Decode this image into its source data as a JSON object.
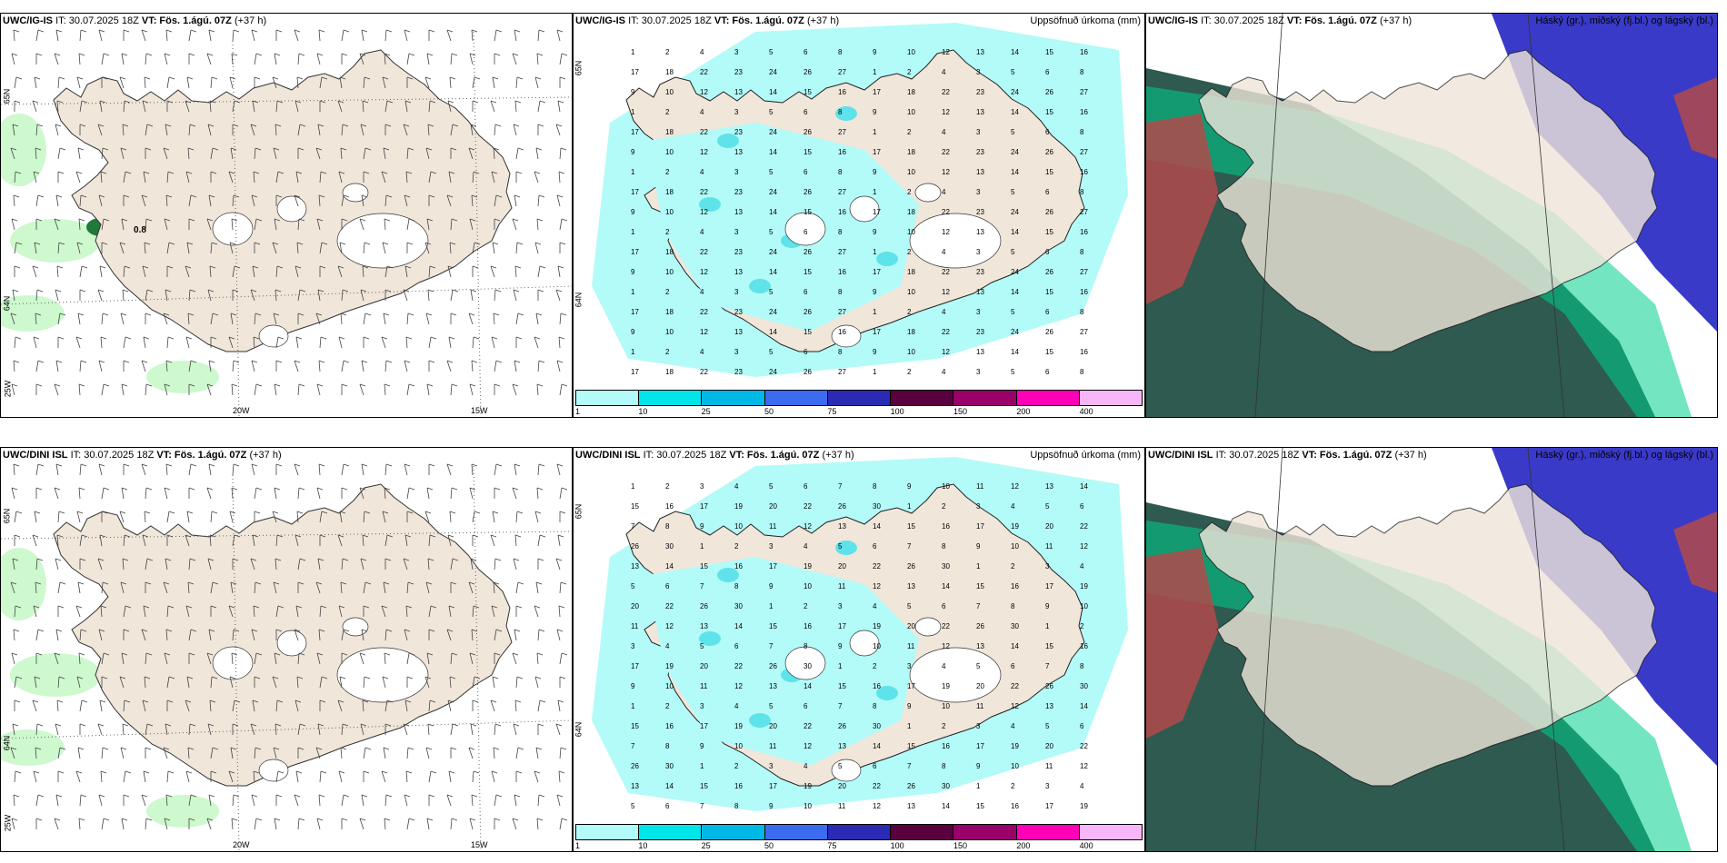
{
  "panels": [
    {
      "id": "wind-ig",
      "model": "UWC/IG-IS",
      "it": "IT: 30.07.2025 18Z",
      "vt": "VT: Fös. 1.ágú. 07Z",
      "lead": "(+37 h)",
      "right": "",
      "labels": [
        "20W",
        "15W",
        "65N",
        "64N",
        "25W"
      ],
      "numbers": [
        "0.8"
      ]
    },
    {
      "id": "precip-ig",
      "model": "UWC/IG-IS",
      "it": "IT: 30.07.2025 18Z",
      "vt": "VT: Fös. 1.ágú. 07Z",
      "lead": "(+37 h)",
      "right": "Uppsöfnuð úrkoma (mm)",
      "labels": [
        "65N",
        "64N"
      ],
      "numbers": [
        "1",
        "2",
        "4",
        "3",
        "5",
        "6",
        "8",
        "9",
        "10",
        "12",
        "13",
        "14",
        "15",
        "16",
        "17",
        "18",
        "22",
        "23",
        "24",
        "26",
        "27"
      ]
    },
    {
      "id": "cloud-ig",
      "model": "UWC/IG-IS",
      "it": "IT: 30.07.2025 18Z",
      "vt": "VT: Fös. 1.ágú. 07Z",
      "lead": "(+37 h)",
      "right": "Háský (gr.), miðský (fj.bl.) og lágský (bl.)"
    },
    {
      "id": "wind-dini",
      "model": "UWC/DINI ISL",
      "it": "IT: 30.07.2025 18Z",
      "vt": "VT: Fös. 1.ágú. 07Z",
      "lead": "(+37 h)",
      "right": "",
      "labels": [
        "20W",
        "15W",
        "65N",
        "64N",
        "25W"
      ]
    },
    {
      "id": "precip-dini",
      "model": "UWC/DINI ISL",
      "it": "IT: 30.07.2025 18Z",
      "vt": "VT: Fös. 1.ágú. 07Z",
      "lead": "(+37 h)",
      "right": "Uppsöfnuð úrkoma (mm)",
      "labels": [
        "65N",
        "64N"
      ],
      "numbers": [
        "1",
        "2",
        "3",
        "4",
        "5",
        "6",
        "7",
        "8",
        "9",
        "10",
        "11",
        "12",
        "13",
        "14",
        "15",
        "16",
        "17",
        "19",
        "20",
        "22",
        "26",
        "30"
      ]
    },
    {
      "id": "cloud-dini",
      "model": "UWC/DINI ISL",
      "it": "IT: 30.07.2025 18Z",
      "vt": "VT: Fös. 1.ágú. 07Z",
      "lead": "(+37 h)",
      "right": "Háský (gr.), miðský (fj.bl.) og lágský (bl.)"
    }
  ],
  "colorbar": {
    "labels": [
      "1",
      "10",
      "25",
      "50",
      "75",
      "100",
      "150",
      "200",
      "400"
    ],
    "colors": [
      "#b3fbf8",
      "#00e5ea",
      "#00b8e6",
      "#3b6cf0",
      "#2a2ab4",
      "#5a003f",
      "#99006a",
      "#ff00b8",
      "#f7b6f7"
    ]
  },
  "colors": {
    "land": "#f0e6da",
    "glacier": "#ffffff",
    "precip_light": "#b3fbf8",
    "cloud_high": "#2e5a50",
    "cloud_mid": "#00d08c",
    "cloud_low": "#3a3ac8",
    "cloud_red": "#b04a4a"
  }
}
